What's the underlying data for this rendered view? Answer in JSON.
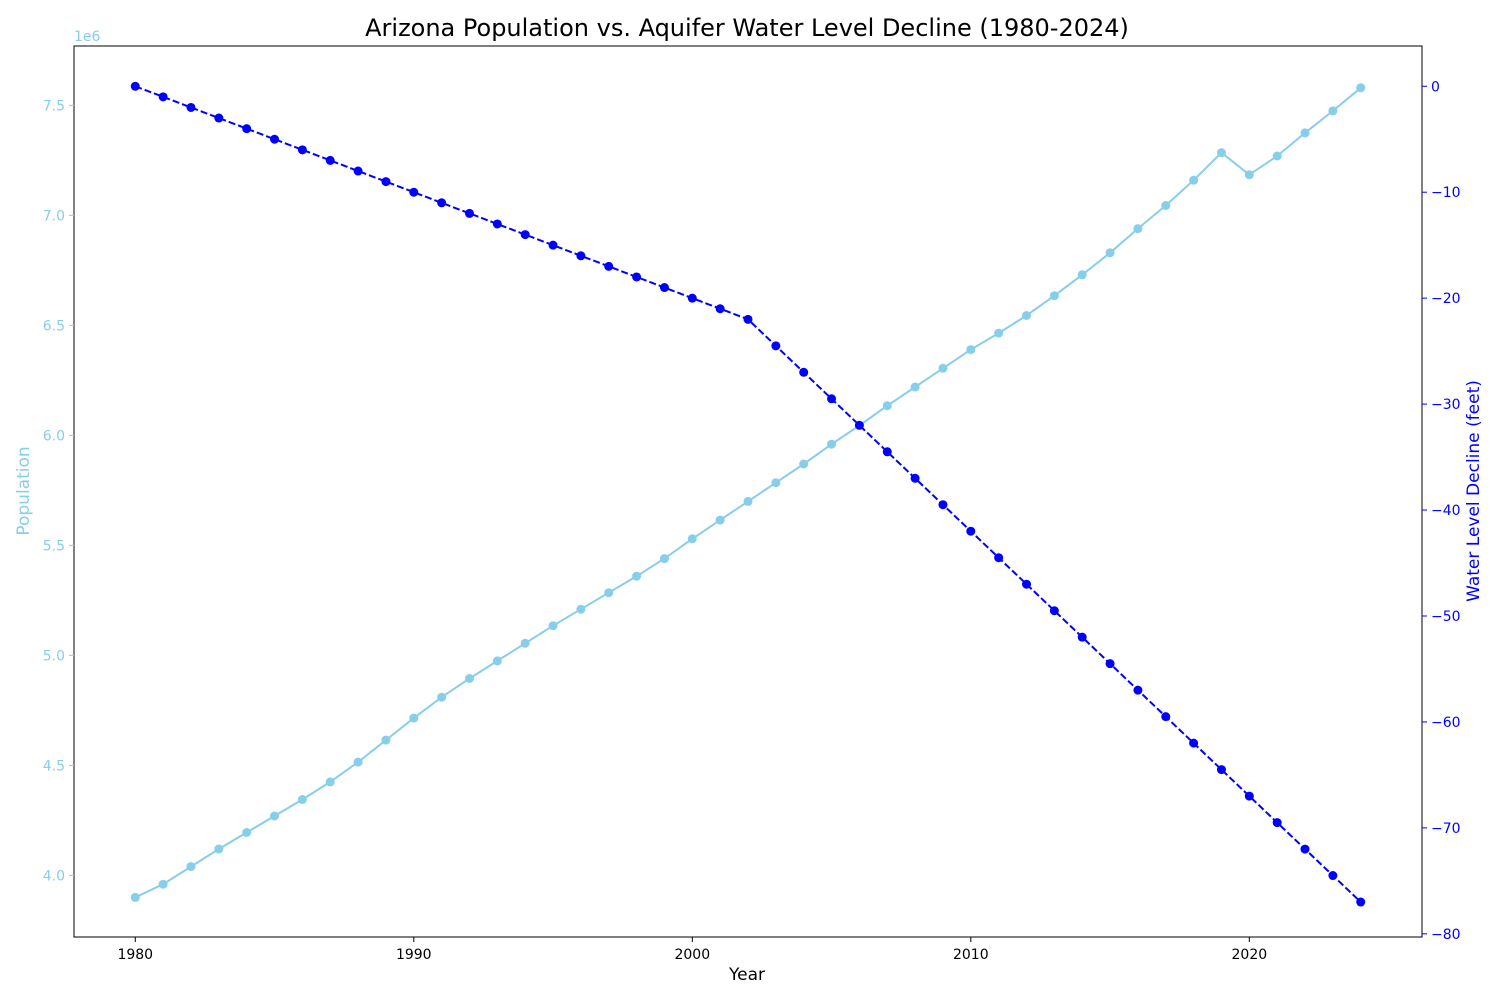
{
  "chart_data": {
    "type": "line",
    "title": "Arizona Population vs. Aquifer Water Level Decline (1980-2024)",
    "xlabel": "Year",
    "ylabel_left": "Population",
    "ylabel_right": "Water Level Decline (feet)",
    "left_offset_text": "1e6",
    "left_scale": 1000000,
    "xlim": [
      1977.8,
      2026.2
    ],
    "ylim_left": [
      3720000,
      7770000
    ],
    "ylim_right": [
      -80.3,
      3.8
    ],
    "x_ticks": [
      1980,
      1990,
      2000,
      2010,
      2020
    ],
    "y_left_ticks": [
      4.0,
      4.5,
      5.0,
      5.5,
      6.0,
      6.5,
      7.0,
      7.5
    ],
    "y_right_ticks": [
      0,
      -10,
      -20,
      -30,
      -40,
      -50,
      -60,
      -70,
      -80
    ],
    "grid": false,
    "colors": {
      "population": "#87ceeb",
      "water": "#0000ff",
      "axes": "#000000"
    },
    "x": [
      1980,
      1981,
      1982,
      1983,
      1984,
      1985,
      1986,
      1987,
      1988,
      1989,
      1990,
      1991,
      1992,
      1993,
      1994,
      1995,
      1996,
      1997,
      1998,
      1999,
      2000,
      2001,
      2002,
      2003,
      2004,
      2005,
      2006,
      2007,
      2008,
      2009,
      2010,
      2011,
      2012,
      2013,
      2014,
      2015,
      2016,
      2017,
      2018,
      2019,
      2020,
      2021,
      2022,
      2023,
      2024
    ],
    "series": [
      {
        "name": "Population",
        "axis": "left",
        "style": "solid",
        "values": [
          3900000,
          3960000,
          4040000,
          4120000,
          4195000,
          4270000,
          4345000,
          4425000,
          4515000,
          4615000,
          4715000,
          4810000,
          4895000,
          4975000,
          5055000,
          5135000,
          5210000,
          5285000,
          5360000,
          5440000,
          5530000,
          5615000,
          5700000,
          5785000,
          5870000,
          5960000,
          6045000,
          6135000,
          6220000,
          6305000,
          6390000,
          6465000,
          6545000,
          6635000,
          6730000,
          6830000,
          6940000,
          7045000,
          7160000,
          7285000,
          7185000,
          7270000,
          7375000,
          7475000,
          7580000
        ]
      },
      {
        "name": "Water Level Decline (feet)",
        "axis": "right",
        "style": "dashed",
        "values": [
          0,
          -1,
          -2,
          -3,
          -4,
          -5,
          -6,
          -7,
          -8,
          -9,
          -10,
          -11,
          -12,
          -13,
          -14,
          -15,
          -16,
          -17,
          -18,
          -19,
          -20,
          -21,
          -22,
          -24.5,
          -27,
          -29.5,
          -32,
          -34.5,
          -37,
          -39.5,
          -42,
          -44.5,
          -47,
          -49.5,
          -52,
          -54.5,
          -57,
          -59.5,
          -62,
          -64.5,
          -67,
          -69.5,
          -72,
          -74.5,
          -77
        ]
      }
    ]
  }
}
